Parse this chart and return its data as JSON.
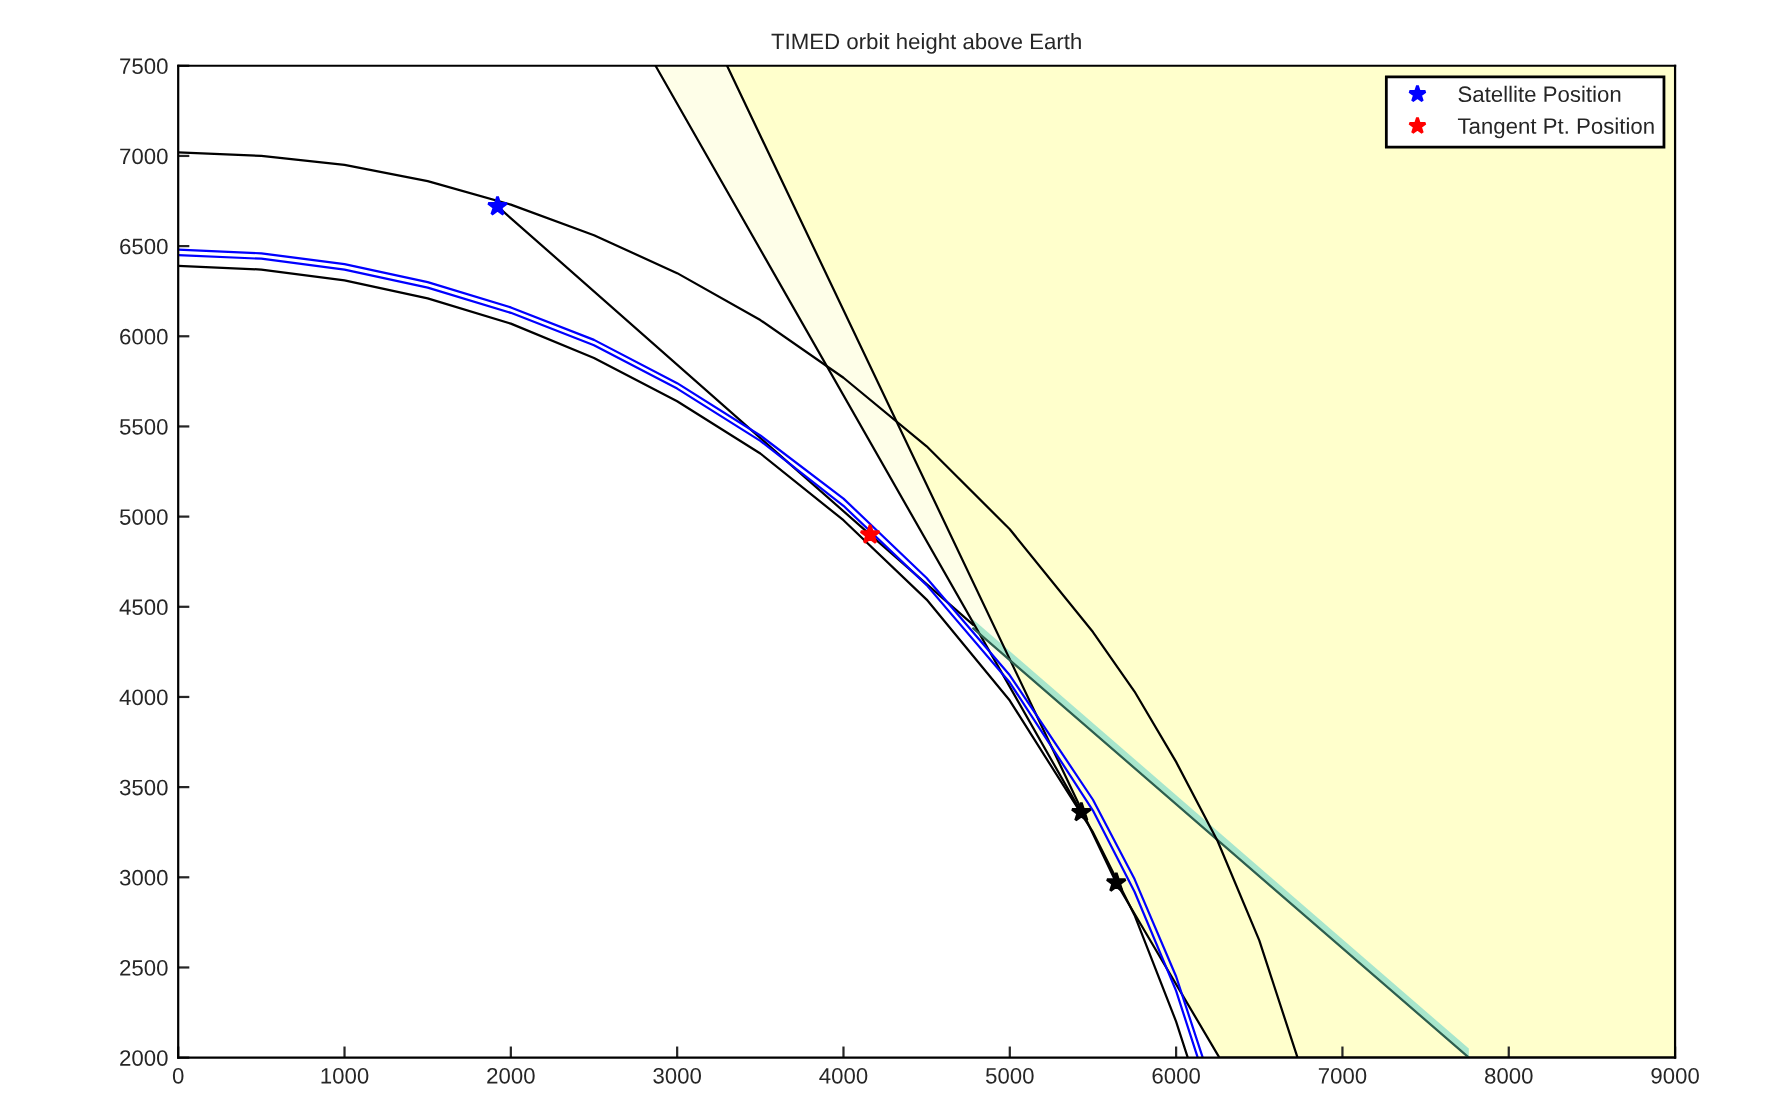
{
  "chart_data": {
    "type": "line",
    "title": "TIMED orbit height above Earth",
    "xlim": [
      0,
      9000
    ],
    "ylim": [
      2000,
      7500
    ],
    "xticks": [
      0,
      1000,
      2000,
      3000,
      4000,
      5000,
      6000,
      7000,
      8000,
      9000
    ],
    "yticks": [
      2000,
      2500,
      3000,
      3500,
      4000,
      4500,
      5000,
      5500,
      6000,
      6500,
      7000,
      7500
    ],
    "legend": "top right",
    "series": [
      {
        "color": "#000000",
        "x": [
          2870,
          5430
        ],
        "values": [
          7500,
          3360
        ],
        "lower": [
          7500,
          3360
        ],
        "upper": [
          7500,
          7500
        ]
      },
      {
        "color": "#000000",
        "x": [
          3300,
          5640,
          6260,
          9000
        ],
        "values": [
          7500,
          2970,
          2000,
          2000
        ],
        "lower": [
          7500,
          2970,
          2000,
          2000
        ],
        "upper": [
          7500,
          7500,
          7500,
          7500
        ]
      },
      {
        "color": "#2e5e4e",
        "x": [
          4780,
          7760
        ],
        "values": [
          4380,
          2000
        ],
        "lower": [
          4380,
          2000
        ],
        "upper": [
          4430,
          2050
        ]
      },
      {
        "color": "#000000",
        "x": [
          1920,
          4160,
          4780
        ],
        "values": [
          6720,
          4900,
          4400
        ]
      },
      {
        "color": "#000000",
        "x": [
          0,
          500,
          1000,
          1500,
          2000,
          2500,
          3000,
          3500,
          4000,
          4500,
          5000,
          5500,
          5750,
          6000,
          6070
        ],
        "values": [
          6390,
          6370,
          6310,
          6210,
          6070,
          5880,
          5640,
          5350,
          4980,
          4540,
          3980,
          3250,
          2790,
          2200,
          2000
        ]
      },
      {
        "color": "#0000ff",
        "x": [
          0,
          500,
          1000,
          1500,
          2000,
          2500,
          3000,
          3500,
          4000,
          4500,
          5000,
          5500,
          5750,
          6000,
          6130
        ],
        "values": [
          6450,
          6430,
          6370,
          6270,
          6130,
          5950,
          5710,
          5420,
          5060,
          4620,
          4080,
          3370,
          2920,
          2370,
          2000
        ]
      },
      {
        "color": "#0000ff",
        "x": [
          0,
          500,
          1000,
          1500,
          2000,
          2500,
          3000,
          3500,
          4000,
          4500,
          5000,
          5500,
          5750,
          6000,
          6160
        ],
        "values": [
          6480,
          6460,
          6400,
          6300,
          6160,
          5980,
          5740,
          5450,
          5100,
          4660,
          4120,
          3430,
          2990,
          2450,
          2000
        ]
      },
      {
        "color": "#000000",
        "x": [
          0,
          500,
          1000,
          1500,
          2000,
          2500,
          3000,
          3500,
          4000,
          4500,
          5000,
          5500,
          5750,
          6000,
          6250,
          6500,
          6730
        ],
        "values": [
          7020,
          7000,
          6950,
          6860,
          6730,
          6560,
          6350,
          6090,
          5770,
          5390,
          4930,
          4360,
          4030,
          3640,
          3200,
          2650,
          2000
        ]
      },
      {
        "type": "scatter",
        "color": "#000000",
        "marker": "star",
        "x": [
          5430,
          5640
        ],
        "values": [
          3360,
          2970
        ]
      },
      {
        "type": "scatter",
        "name": "Satellite Position",
        "color": "#0000ff",
        "marker": "star",
        "x": [
          1920
        ],
        "values": [
          6720
        ]
      },
      {
        "type": "scatter",
        "name": "Tangent Pt. Position",
        "color": "#ff0000",
        "marker": "star",
        "x": [
          4160
        ],
        "values": [
          4900
        ]
      }
    ]
  }
}
